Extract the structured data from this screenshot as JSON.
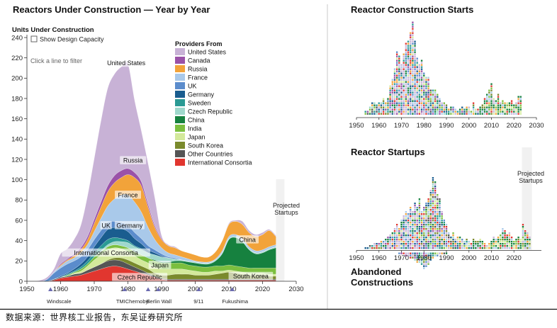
{
  "source_note": "数据来源：世界核工业报告，东吴证券研究所",
  "left_panel": {
    "show_capacity_label": "Show Design Capacity",
    "hint": "Click a line to filter",
    "projected_label": [
      "Projected",
      "Startups"
    ]
  },
  "right_panel": {
    "abandoned_label": [
      "Abandoned",
      "Constructions"
    ],
    "projected_label": [
      "Projected",
      "Startups"
    ]
  },
  "colors": {
    "United States": "#c8b2d6",
    "Canada": "#9a52a8",
    "Russia": "#f2a33a",
    "France": "#a9c9ea",
    "UK": "#5b8ccc",
    "Germany": "#1a5d8f",
    "Sweden": "#2a9a94",
    "Czech Republic": "#9fd8cc",
    "China": "#16813f",
    "India": "#7bbf3f",
    "Japan": "#d3e99b",
    "South Korea": "#7a8a2c",
    "Other Countries": "#555555",
    "International Consortia": "#e1362f"
  },
  "chart_data": [
    {
      "type": "area",
      "stacked": true,
      "title": "Reactors Under Construction — Year by Year",
      "ylabel": "Units Under Construction",
      "xlim": [
        1950,
        2030
      ],
      "ylim": [
        0,
        240
      ],
      "xticks": [
        1950,
        1960,
        1970,
        1980,
        1990,
        2000,
        2010,
        2020,
        2030
      ],
      "yticks": [
        0,
        20,
        40,
        60,
        80,
        100,
        120,
        140,
        160,
        180,
        200,
        220,
        240
      ],
      "legend_title": "Providers From",
      "x": [
        1950,
        1952,
        1954,
        1956,
        1958,
        1960,
        1962,
        1964,
        1966,
        1968,
        1970,
        1972,
        1974,
        1976,
        1978,
        1980,
        1982,
        1984,
        1986,
        1988,
        1990,
        1992,
        1994,
        1996,
        1998,
        2000,
        2002,
        2004,
        2006,
        2008,
        2010,
        2012,
        2014,
        2016,
        2018,
        2020,
        2022,
        2024
      ],
      "series": [
        {
          "name": "International Consortia",
          "values": [
            0,
            0,
            0,
            0,
            1,
            3,
            4,
            5,
            6,
            8,
            10,
            12,
            14,
            15,
            14,
            12,
            10,
            8,
            6,
            4,
            2,
            1,
            1,
            1,
            1,
            1,
            1,
            1,
            1,
            1,
            1,
            1,
            1,
            1,
            1,
            1,
            1,
            1
          ]
        },
        {
          "name": "Other Countries",
          "values": [
            0,
            0,
            0,
            0,
            1,
            1,
            1,
            2,
            2,
            3,
            4,
            5,
            6,
            6,
            6,
            5,
            4,
            3,
            2,
            1,
            1,
            1,
            1,
            1,
            1,
            1,
            1,
            1,
            1,
            1,
            1,
            1,
            1,
            1,
            1,
            1,
            1,
            1
          ]
        },
        {
          "name": "South Korea",
          "values": [
            0,
            0,
            0,
            0,
            0,
            0,
            0,
            0,
            0,
            0,
            0,
            0,
            1,
            2,
            3,
            4,
            4,
            4,
            4,
            3,
            3,
            4,
            5,
            5,
            5,
            4,
            4,
            4,
            5,
            6,
            7,
            6,
            5,
            4,
            4,
            4,
            3,
            3
          ]
        },
        {
          "name": "Japan",
          "values": [
            0,
            0,
            0,
            0,
            0,
            0,
            0,
            1,
            2,
            4,
            7,
            9,
            10,
            10,
            9,
            8,
            7,
            6,
            6,
            6,
            6,
            6,
            5,
            5,
            4,
            4,
            3,
            3,
            3,
            2,
            2,
            2,
            2,
            2,
            2,
            2,
            2,
            2
          ]
        },
        {
          "name": "India",
          "values": [
            0,
            0,
            0,
            0,
            0,
            0,
            1,
            1,
            2,
            2,
            3,
            3,
            3,
            3,
            3,
            4,
            4,
            5,
            5,
            6,
            6,
            6,
            6,
            6,
            5,
            5,
            5,
            5,
            5,
            5,
            5,
            5,
            5,
            5,
            5,
            5,
            6,
            6
          ]
        },
        {
          "name": "China",
          "values": [
            0,
            0,
            0,
            0,
            0,
            0,
            0,
            0,
            0,
            0,
            0,
            0,
            0,
            0,
            0,
            0,
            0,
            0,
            0,
            1,
            1,
            1,
            2,
            2,
            3,
            3,
            3,
            3,
            5,
            12,
            25,
            28,
            25,
            18,
            14,
            15,
            18,
            20
          ]
        },
        {
          "name": "Czech Republic",
          "values": [
            0,
            0,
            0,
            0,
            0,
            0,
            0,
            0,
            0,
            0,
            0,
            1,
            2,
            3,
            4,
            5,
            5,
            5,
            5,
            5,
            5,
            4,
            2,
            1,
            1,
            1,
            1,
            1,
            1,
            1,
            1,
            1,
            1,
            1,
            1,
            1,
            1,
            1
          ]
        },
        {
          "name": "Sweden",
          "values": [
            0,
            0,
            0,
            0,
            0,
            0,
            1,
            1,
            2,
            3,
            4,
            5,
            5,
            4,
            3,
            2,
            1,
            1,
            0,
            0,
            0,
            0,
            0,
            0,
            0,
            0,
            0,
            0,
            0,
            0,
            0,
            0,
            0,
            0,
            0,
            0,
            0,
            0
          ]
        },
        {
          "name": "Germany",
          "values": [
            0,
            0,
            0,
            0,
            0,
            1,
            1,
            2,
            3,
            4,
            6,
            8,
            10,
            10,
            10,
            9,
            7,
            5,
            3,
            2,
            1,
            0,
            0,
            0,
            0,
            0,
            0,
            0,
            0,
            0,
            0,
            0,
            0,
            0,
            0,
            0,
            0,
            0
          ]
        },
        {
          "name": "UK",
          "values": [
            0,
            0,
            0,
            2,
            6,
            8,
            9,
            8,
            7,
            7,
            7,
            7,
            7,
            6,
            6,
            6,
            6,
            5,
            4,
            3,
            2,
            1,
            1,
            0,
            0,
            0,
            0,
            0,
            0,
            0,
            0,
            0,
            0,
            0,
            0,
            0,
            0,
            0
          ]
        },
        {
          "name": "France",
          "values": [
            0,
            0,
            0,
            0,
            1,
            2,
            3,
            3,
            4,
            5,
            8,
            12,
            16,
            22,
            27,
            30,
            30,
            26,
            18,
            10,
            6,
            4,
            3,
            3,
            2,
            1,
            1,
            1,
            1,
            2,
            2,
            2,
            2,
            2,
            2,
            2,
            2,
            2
          ]
        },
        {
          "name": "Russia",
          "values": [
            0,
            0,
            0,
            0,
            0,
            1,
            1,
            2,
            3,
            5,
            8,
            11,
            14,
            16,
            17,
            20,
            24,
            26,
            20,
            12,
            8,
            7,
            7,
            6,
            6,
            6,
            5,
            5,
            7,
            10,
            12,
            13,
            14,
            14,
            14,
            15,
            16,
            8
          ]
        },
        {
          "name": "Canada",
          "values": [
            0,
            0,
            0,
            0,
            0,
            1,
            1,
            2,
            2,
            3,
            4,
            5,
            6,
            7,
            7,
            6,
            5,
            4,
            3,
            2,
            1,
            0,
            0,
            0,
            0,
            0,
            0,
            0,
            0,
            0,
            0,
            0,
            0,
            0,
            0,
            0,
            0,
            0
          ]
        },
        {
          "name": "United States",
          "values": [
            0,
            0,
            1,
            2,
            3,
            10,
            10,
            14,
            22,
            40,
            60,
            80,
            96,
            100,
            102,
            103,
            71,
            50,
            40,
            27,
            3,
            1,
            1,
            0,
            0,
            0,
            0,
            0,
            0,
            0,
            1,
            1,
            3,
            2,
            2,
            2,
            1,
            1
          ]
        }
      ],
      "band_labels": [
        {
          "text": "United States",
          "x": 1979.5,
          "y": 214
        },
        {
          "text": "Russia",
          "x": 1981.5,
          "y": 118
        },
        {
          "text": "France",
          "x": 1980,
          "y": 84
        },
        {
          "text": "UK",
          "x": 1973.5,
          "y": 54
        },
        {
          "text": "Germany",
          "x": 1980.5,
          "y": 54
        },
        {
          "text": "International Consortia",
          "x": 1973.5,
          "y": 27
        },
        {
          "text": "Japan",
          "x": 1989.5,
          "y": 15
        },
        {
          "text": "Czech Republic",
          "x": 1983.5,
          "y": 3
        },
        {
          "text": "China",
          "x": 2015.5,
          "y": 40
        },
        {
          "text": "South Korea",
          "x": 2016.5,
          "y": 4
        }
      ],
      "events": [
        {
          "label": "Windscale",
          "year": 1957
        },
        {
          "label": "TMI",
          "year": 1979
        },
        {
          "label": "Chernobyl",
          "year": 1986
        },
        {
          "label": "Berlin Wall",
          "year": 1989
        },
        {
          "label": "9/11",
          "year": 2001
        },
        {
          "label": "Fukushima",
          "year": 2011
        }
      ],
      "projected_from": 2024
    },
    {
      "type": "scatter",
      "title": "Reactor Construction Starts",
      "xlim": [
        1950,
        2030
      ],
      "xticks": [
        1950,
        1960,
        1970,
        1980,
        1990,
        2000,
        2010,
        2020,
        2030
      ],
      "x": [
        1954,
        1955,
        1956,
        1957,
        1958,
        1959,
        1960,
        1961,
        1962,
        1963,
        1964,
        1965,
        1966,
        1967,
        1968,
        1969,
        1970,
        1971,
        1972,
        1973,
        1974,
        1975,
        1976,
        1977,
        1978,
        1979,
        1980,
        1981,
        1982,
        1983,
        1984,
        1985,
        1986,
        1987,
        1988,
        1989,
        1990,
        1991,
        1992,
        1993,
        1994,
        1995,
        1996,
        1997,
        1998,
        1999,
        2000,
        2001,
        2002,
        2003,
        2004,
        2005,
        2006,
        2007,
        2008,
        2009,
        2010,
        2011,
        2012,
        2013,
        2014,
        2015,
        2016,
        2017,
        2018,
        2019,
        2020,
        2021,
        2022,
        2023
      ],
      "counts": [
        2,
        2,
        4,
        6,
        6,
        5,
        6,
        6,
        8,
        6,
        8,
        14,
        17,
        22,
        30,
        28,
        24,
        29,
        34,
        35,
        39,
        44,
        35,
        27,
        24,
        26,
        20,
        18,
        18,
        12,
        12,
        12,
        10,
        8,
        6,
        6,
        5,
        3,
        4,
        4,
        3,
        2,
        3,
        4,
        3,
        4,
        4,
        2,
        6,
        3,
        3,
        4,
        5,
        8,
        10,
        12,
        15,
        8,
        7,
        10,
        6,
        7,
        6,
        6,
        6,
        7,
        5,
        6,
        9,
        9
      ]
    },
    {
      "type": "scatter",
      "title": "Reactor Startups",
      "xlim": [
        1950,
        2030
      ],
      "xticks": [
        1950,
        1960,
        1970,
        1980,
        1990,
        2000,
        2010,
        2020
      ],
      "x": [
        1954,
        1955,
        1956,
        1957,
        1958,
        1959,
        1960,
        1961,
        1962,
        1963,
        1964,
        1965,
        1966,
        1967,
        1968,
        1969,
        1970,
        1971,
        1972,
        1973,
        1974,
        1975,
        1976,
        1977,
        1978,
        1979,
        1980,
        1981,
        1982,
        1983,
        1984,
        1985,
        1986,
        1987,
        1988,
        1989,
        1990,
        1991,
        1992,
        1993,
        1994,
        1995,
        1996,
        1997,
        1998,
        1999,
        2000,
        2001,
        2002,
        2003,
        2004,
        2005,
        2006,
        2007,
        2008,
        2009,
        2010,
        2011,
        2012,
        2013,
        2014,
        2015,
        2016,
        2017,
        2018,
        2019,
        2020,
        2021,
        2022,
        2023,
        2024,
        2025,
        2026,
        2027
      ],
      "counts": [
        1,
        1,
        2,
        2,
        3,
        3,
        3,
        4,
        4,
        5,
        6,
        7,
        8,
        10,
        12,
        10,
        14,
        16,
        18,
        17,
        20,
        18,
        22,
        20,
        24,
        18,
        20,
        22,
        24,
        28,
        34,
        32,
        26,
        24,
        18,
        14,
        12,
        8,
        6,
        8,
        5,
        6,
        6,
        5,
        4,
        5,
        4,
        3,
        5,
        4,
        4,
        5,
        4,
        3,
        2,
        3,
        4,
        6,
        5,
        6,
        7,
        10,
        9,
        7,
        8,
        6,
        4,
        5,
        6,
        5,
        12,
        9,
        8,
        6
      ],
      "abandoned_counts": [
        0,
        0,
        0,
        0,
        0,
        0,
        0,
        0,
        0,
        0,
        0,
        0,
        0,
        0,
        0,
        1,
        1,
        1,
        2,
        2,
        3,
        3,
        4,
        5,
        5,
        6,
        8,
        7,
        6,
        4,
        3,
        2,
        2,
        1,
        1,
        1,
        1,
        0,
        0,
        0,
        0,
        0,
        0,
        0,
        0,
        0,
        0,
        0,
        0,
        0,
        0,
        0,
        0,
        0,
        0,
        0,
        0,
        0,
        0,
        0,
        0,
        0,
        0,
        0,
        0,
        0,
        0,
        0,
        0,
        0,
        0,
        0,
        0,
        0
      ],
      "projected_from": 2024
    }
  ]
}
